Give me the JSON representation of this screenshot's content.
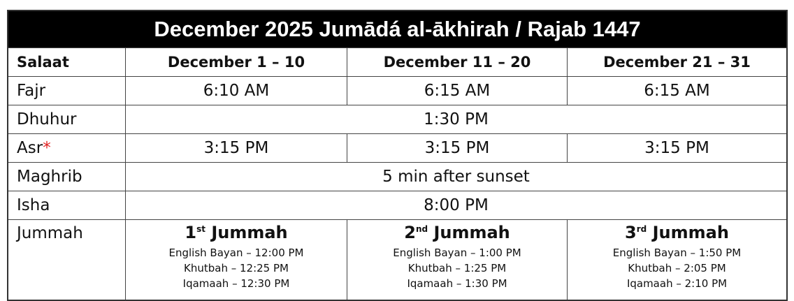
{
  "title": "December 2025 Jumādá al-ākhirah / Rajab 1447",
  "headers": [
    "Salaat",
    "December 1 – 10",
    "December 11 – 20",
    "December 21 – 31"
  ],
  "rows": {
    "fajr": {
      "name": "Fajr",
      "times": [
        "6:10 AM",
        "6:15 AM",
        "6:15 AM"
      ]
    },
    "dhuhur": {
      "name": "Dhuhur",
      "time": "1:30 PM"
    },
    "asr": {
      "name": "Asr",
      "mark": "*",
      "times": [
        "3:15 PM",
        "3:15 PM",
        "3:15 PM"
      ]
    },
    "maghrib": {
      "name": "Maghrib",
      "time": "5 min after sunset"
    },
    "isha": {
      "name": "Isha",
      "time": "8:00 PM"
    }
  },
  "jummah": {
    "name": "Jummah",
    "sessions": [
      {
        "num": "1",
        "suffix": "st",
        "label": "Jummah",
        "bayan": "English Bayan – 12:00 PM",
        "khutbah": "Khutbah – 12:25 PM",
        "iqamaah": "Iqamaah – 12:30 PM"
      },
      {
        "num": "2",
        "suffix": "nd",
        "label": "Jummah",
        "bayan": "English Bayan – 1:00 PM",
        "khutbah": "Khutbah – 1:25 PM",
        "iqamaah": "Iqamaah – 1:30 PM"
      },
      {
        "num": "3",
        "suffix": "rd",
        "label": "Jummah",
        "bayan": "English Bayan – 1:50 PM",
        "khutbah": "Khutbah – 2:05 PM",
        "iqamaah": "Iqamaah – 2:10 PM"
      }
    ]
  },
  "colors": {
    "asterisk": "#e02020",
    "title_bg": "#000000"
  }
}
